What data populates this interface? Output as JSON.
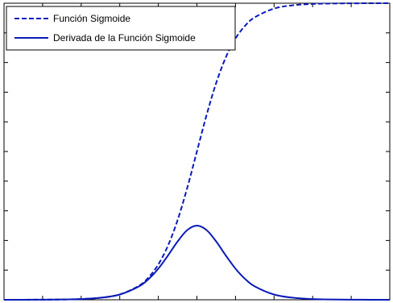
{
  "chart_data": {
    "type": "line",
    "title": "",
    "xlabel": "",
    "ylabel": "",
    "xlim": [
      -10,
      10
    ],
    "ylim": [
      0,
      1
    ],
    "grid": false,
    "legend_position": "top-left",
    "tick_count_x": 11,
    "tick_count_y": 11,
    "series": [
      {
        "name": "Función Sigmoide",
        "style": "dashed",
        "color": "#0a1ab8",
        "x": [
          -10,
          -9,
          -8,
          -7,
          -6,
          -5,
          -4,
          -3,
          -2.5,
          -2,
          -1.5,
          -1,
          -0.5,
          0,
          0.5,
          1,
          1.5,
          2,
          2.5,
          3,
          4,
          5,
          6,
          7,
          8,
          9,
          10
        ],
        "y": [
          4.54e-05,
          0.000123,
          0.000335,
          0.000911,
          0.00247,
          0.00669,
          0.018,
          0.0474,
          0.0759,
          0.1192,
          0.1824,
          0.2689,
          0.3775,
          0.5,
          0.6225,
          0.7311,
          0.8176,
          0.8808,
          0.9241,
          0.9526,
          0.982,
          0.9933,
          0.9975,
          0.9991,
          0.9997,
          0.9999,
          1.0
        ]
      },
      {
        "name": "Derivada de la Función Sigmoide",
        "style": "solid",
        "color": "#0a1ab8",
        "x": [
          -10,
          -9,
          -8,
          -7,
          -6,
          -5,
          -4,
          -3,
          -2.5,
          -2,
          -1.5,
          -1,
          -0.5,
          0,
          0.5,
          1,
          1.5,
          2,
          2.5,
          3,
          4,
          5,
          6,
          7,
          8,
          9,
          10
        ],
        "y": [
          4.54e-05,
          0.000123,
          0.000335,
          0.00091,
          0.00247,
          0.00665,
          0.01766,
          0.04518,
          0.07015,
          0.10499,
          0.14915,
          0.19661,
          0.235,
          0.25,
          0.235,
          0.19661,
          0.14915,
          0.10499,
          0.07015,
          0.04518,
          0.01766,
          0.00665,
          0.00247,
          0.00091,
          0.000335,
          0.000123,
          4.54e-05
        ]
      }
    ]
  }
}
